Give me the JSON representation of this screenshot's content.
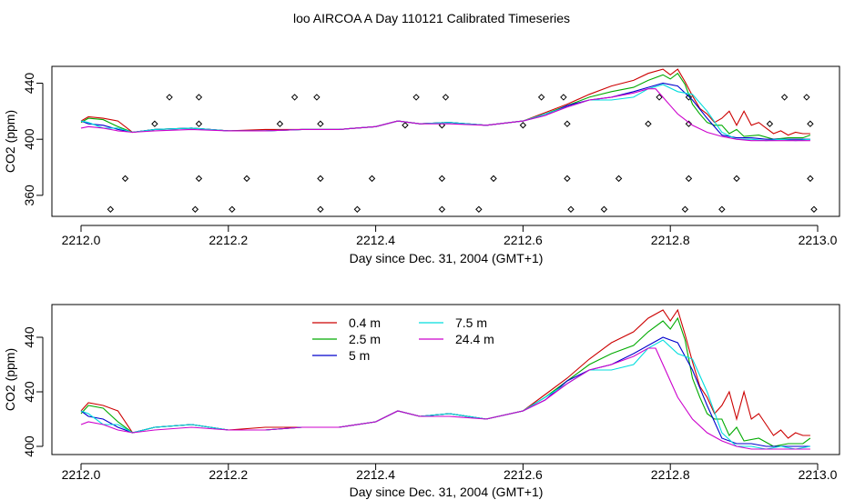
{
  "figure_title": "loo AIRCOA A  Day 110121  Calibrated Timeseries",
  "colors": {
    "0.4 m": "#cc0000",
    "2.5 m": "#00aa00",
    "5 m": "#0000cc",
    "7.5 m": "#00dddd",
    "24.4 m": "#cc00cc",
    "points": "#000000"
  },
  "chart_data": [
    {
      "type": "line",
      "xlabel": "Day since Dec. 31, 2004 (GMT+1)",
      "ylabel": "CO2 (ppm)",
      "xlim": [
        2212.0,
        2213.0
      ],
      "ylim": [
        345,
        452
      ],
      "xticks": [
        "2212.0",
        "2212.2",
        "2212.4",
        "2212.6",
        "2212.8",
        "2213.0"
      ],
      "yticks": [
        "360",
        "400",
        "440"
      ],
      "series": [
        {
          "name": "0.4 m",
          "x": [
            2212.0,
            2212.01,
            2212.03,
            2212.05,
            2212.07,
            2212.1,
            2212.15,
            2212.2,
            2212.25,
            2212.3,
            2212.35,
            2212.4,
            2212.43,
            2212.46,
            2212.5,
            2212.55,
            2212.6,
            2212.63,
            2212.66,
            2212.69,
            2212.72,
            2212.75,
            2212.77,
            2212.79,
            2212.8,
            2212.81,
            2212.82,
            2212.83,
            2212.84,
            2212.85,
            2212.86,
            2212.87,
            2212.88,
            2212.89,
            2212.9,
            2212.91,
            2212.92,
            2212.93,
            2212.94,
            2212.95,
            2212.96,
            2212.97,
            2212.98,
            2212.99
          ],
          "y": [
            413,
            416,
            415,
            413,
            405,
            407,
            408,
            406,
            407,
            407,
            407,
            409,
            413,
            411,
            412,
            410,
            413,
            419,
            425,
            432,
            438,
            442,
            447,
            450,
            446,
            450,
            441,
            431,
            422,
            418,
            412,
            415,
            420,
            410,
            420,
            410,
            412,
            408,
            404,
            406,
            403,
            405,
            404,
            404
          ]
        },
        {
          "name": "2.5 m",
          "x": [
            2212.0,
            2212.01,
            2212.03,
            2212.05,
            2212.07,
            2212.1,
            2212.15,
            2212.2,
            2212.25,
            2212.3,
            2212.35,
            2212.4,
            2212.43,
            2212.46,
            2212.5,
            2212.55,
            2212.6,
            2212.63,
            2212.66,
            2212.69,
            2212.72,
            2212.75,
            2212.77,
            2212.79,
            2212.8,
            2212.81,
            2212.82,
            2212.83,
            2212.84,
            2212.85,
            2212.86,
            2212.87,
            2212.88,
            2212.89,
            2212.9,
            2212.92,
            2212.94,
            2212.96,
            2212.98,
            2212.99
          ],
          "y": [
            412,
            415,
            414,
            409,
            405,
            407,
            408,
            406,
            406,
            407,
            407,
            409,
            413,
            411,
            412,
            410,
            413,
            418,
            424,
            430,
            434,
            437,
            442,
            446,
            443,
            447,
            439,
            425,
            418,
            412,
            410,
            410,
            404,
            407,
            402,
            403,
            400,
            401,
            401,
            403
          ]
        },
        {
          "name": "5 m",
          "x": [
            2212.0,
            2212.01,
            2212.03,
            2212.05,
            2212.07,
            2212.1,
            2212.15,
            2212.2,
            2212.25,
            2212.3,
            2212.35,
            2212.4,
            2212.43,
            2212.46,
            2212.5,
            2212.55,
            2212.6,
            2212.63,
            2212.66,
            2212.69,
            2212.72,
            2212.75,
            2212.77,
            2212.79,
            2212.81,
            2212.83,
            2212.85,
            2212.87,
            2212.89,
            2212.91,
            2212.93,
            2212.95,
            2212.97,
            2212.99
          ],
          "y": [
            413,
            411,
            410,
            407,
            405,
            407,
            408,
            406,
            406,
            407,
            407,
            409,
            413,
            411,
            412,
            410,
            413,
            417,
            424,
            428,
            430,
            434,
            437,
            440,
            438,
            428,
            415,
            403,
            401,
            401,
            400,
            400,
            400,
            400
          ]
        },
        {
          "name": "7.5 m",
          "x": [
            2212.0,
            2212.01,
            2212.03,
            2212.05,
            2212.07,
            2212.1,
            2212.15,
            2212.2,
            2212.25,
            2212.3,
            2212.35,
            2212.4,
            2212.43,
            2212.46,
            2212.5,
            2212.55,
            2212.6,
            2212.63,
            2212.66,
            2212.69,
            2212.72,
            2212.75,
            2212.77,
            2212.79,
            2212.81,
            2212.83,
            2212.85,
            2212.87,
            2212.89,
            2212.91,
            2212.93,
            2212.95,
            2212.97,
            2212.99
          ],
          "y": [
            413,
            412,
            408,
            408,
            405,
            407,
            408,
            406,
            406,
            407,
            407,
            409,
            413,
            411,
            412,
            410,
            413,
            418,
            423,
            428,
            428,
            430,
            436,
            439,
            434,
            432,
            420,
            405,
            400,
            400,
            399,
            400,
            399,
            400
          ]
        },
        {
          "name": "24.4 m",
          "x": [
            2212.0,
            2212.01,
            2212.03,
            2212.05,
            2212.07,
            2212.1,
            2212.15,
            2212.2,
            2212.25,
            2212.3,
            2212.35,
            2212.4,
            2212.43,
            2212.46,
            2212.5,
            2212.55,
            2212.6,
            2212.63,
            2212.66,
            2212.69,
            2212.72,
            2212.75,
            2212.77,
            2212.78,
            2212.79,
            2212.8,
            2212.81,
            2212.83,
            2212.85,
            2212.87,
            2212.89,
            2212.91,
            2212.93,
            2212.95,
            2212.97,
            2212.99
          ],
          "y": [
            408,
            409,
            408,
            406,
            405,
            406,
            407,
            406,
            406,
            407,
            407,
            409,
            413,
            411,
            411,
            410,
            413,
            417,
            423,
            428,
            430,
            433,
            436,
            436,
            430,
            424,
            418,
            410,
            405,
            402,
            400,
            399,
            399,
            399,
            399,
            399
          ]
        }
      ],
      "points": {
        "x": [
          2212.04,
          2212.06,
          2212.1,
          2212.12,
          2212.155,
          2212.16,
          2212.16,
          2212.16,
          2212.205,
          2212.225,
          2212.27,
          2212.29,
          2212.32,
          2212.325,
          2212.325,
          2212.325,
          2212.375,
          2212.395,
          2212.44,
          2212.455,
          2212.49,
          2212.49,
          2212.49,
          2212.495,
          2212.54,
          2212.56,
          2212.6,
          2212.625,
          2212.655,
          2212.66,
          2212.66,
          2212.665,
          2212.71,
          2212.73,
          2212.77,
          2212.785,
          2212.82,
          2212.825,
          2212.825,
          2212.825,
          2212.87,
          2212.89,
          2212.935,
          2212.955,
          2212.985,
          2212.99,
          2212.99,
          2212.995
        ],
        "y": [
          350,
          372,
          411,
          430,
          350,
          372,
          411,
          430,
          350,
          372,
          411,
          430,
          430,
          411,
          372,
          350,
          350,
          372,
          410,
          430,
          350,
          372,
          410,
          430,
          350,
          372,
          410,
          430,
          430,
          411,
          372,
          350,
          350,
          372,
          411,
          430,
          350,
          372,
          411,
          430,
          350,
          372,
          411,
          430,
          430,
          411,
          372,
          350
        ]
      }
    },
    {
      "type": "line",
      "xlabel": "Day since Dec. 31, 2004 (GMT+1)",
      "ylabel": "CO2 (ppm)",
      "xlim": [
        2212.0,
        2213.0
      ],
      "ylim": [
        397,
        452
      ],
      "xticks": [
        "2212.0",
        "2212.2",
        "2212.4",
        "2212.6",
        "2212.8",
        "2213.0"
      ],
      "yticks": [
        "400",
        "420",
        "440"
      ],
      "legend": {
        "placement": "top-left",
        "entries": [
          "0.4 m",
          "2.5 m",
          "5 m",
          "7.5 m",
          "24.4 m"
        ]
      },
      "uses_series_of_panel": 0
    }
  ]
}
